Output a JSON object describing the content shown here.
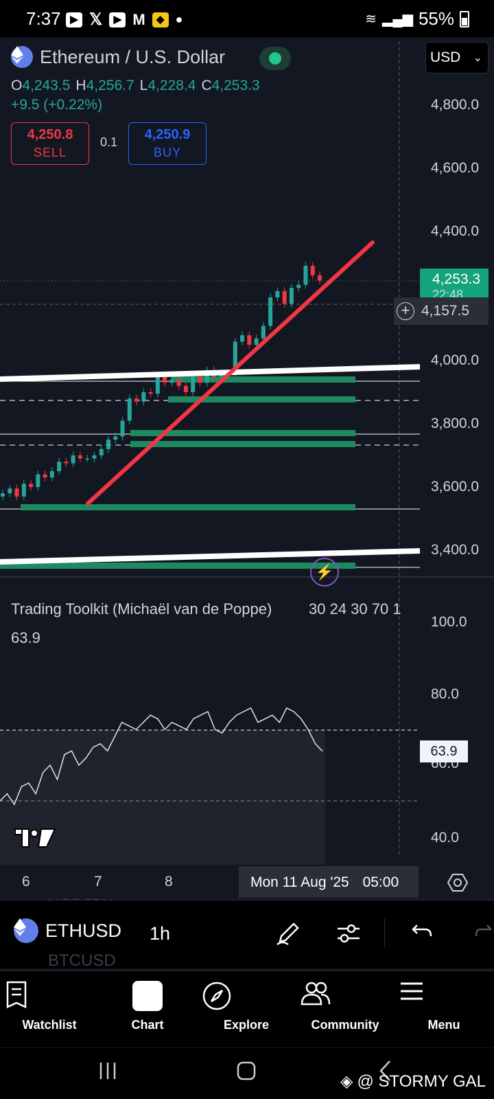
{
  "status_bar": {
    "time": "7:37",
    "battery": "55%",
    "apps": [
      "youtube-icon",
      "x-icon",
      "youtube-icon",
      "gmail-icon",
      "app-icon"
    ]
  },
  "header": {
    "title": "Ethereum / U.S. Dollar",
    "currency": "USD",
    "ohlc": {
      "o_label": "O",
      "o": "4,243.5",
      "h_label": "H",
      "h": "4,256.7",
      "l_label": "L",
      "l": "4,228.4",
      "c_label": "C",
      "c": "4,253.3"
    },
    "change": "+9.5 (+0.22%)",
    "sell": {
      "price": "4,250.8",
      "label": "SELL"
    },
    "buy": {
      "price": "4,250.9",
      "label": "BUY"
    },
    "spread": "0.1"
  },
  "price_axis": {
    "labels": [
      "4,800.0",
      "4,600.0",
      "4,400.0",
      "4,000.0",
      "3,800.0",
      "3,600.0",
      "3,400.0"
    ],
    "last_price": "4,253.3",
    "countdown": "22:48",
    "crosshair_price": "4,157.5"
  },
  "indicator": {
    "name": "Trading Toolkit (Michaël van de Poppe)",
    "params": "30 24 30 70 1",
    "value": "63.9",
    "axis_labels": [
      "100.0",
      "80.0",
      "60.0",
      "40.0"
    ],
    "tag": "63.9"
  },
  "time_axis": {
    "labels": [
      "6",
      "7",
      "8"
    ],
    "crosshair_date": "Mon 11 Aug '25",
    "crosshair_time": "05:00"
  },
  "toolbar": {
    "symbol": "ETHUSD",
    "interval": "1h",
    "ghost_1": "USDJPY",
    "ghost_2": "BTCUSD"
  },
  "nav": {
    "items": [
      {
        "label": "Watchlist",
        "icon": "watchlist-icon"
      },
      {
        "label": "Chart",
        "icon": "chart-icon"
      },
      {
        "label": "Explore",
        "icon": "compass-icon"
      },
      {
        "label": "Community",
        "icon": "community-icon"
      },
      {
        "label": "Menu",
        "icon": "menu-icon"
      }
    ]
  },
  "watermark": "@ STORMY GAL",
  "colors": {
    "up": "#26a69a",
    "down": "#f23645",
    "accent": "#2962ff",
    "trendline": "#f23645",
    "zone": "#1e8a5f"
  },
  "chart_data": {
    "type": "candlestick",
    "symbol": "ETHUSD",
    "interval": "1h",
    "ylim": [
      3350,
      4900
    ],
    "close_path": [
      3580,
      3595,
      3570,
      3610,
      3600,
      3640,
      3630,
      3650,
      3680,
      3675,
      3700,
      3690,
      3690,
      3700,
      3720,
      3750,
      3760,
      3810,
      3880,
      3870,
      3900,
      3895,
      3950,
      3930,
      3940,
      3920,
      3900,
      3950,
      3930,
      3970,
      3950,
      3960,
      3960,
      4060,
      4080,
      4050,
      4070,
      4110,
      4200,
      4220,
      4180,
      4230,
      4240,
      4300,
      4270,
      4253.3
    ],
    "rsi_path": [
      50,
      52,
      49,
      54,
      55,
      52,
      58,
      60,
      56,
      63,
      64,
      60,
      62,
      65,
      66,
      64,
      68,
      72,
      71,
      70,
      72,
      74,
      73,
      70,
      72,
      71,
      70,
      73,
      74,
      75,
      70,
      69,
      72,
      74,
      75,
      76,
      72,
      73,
      74,
      72,
      76,
      75,
      73,
      70,
      66,
      63.9
    ],
    "rsi_ylim": [
      30,
      100
    ]
  }
}
